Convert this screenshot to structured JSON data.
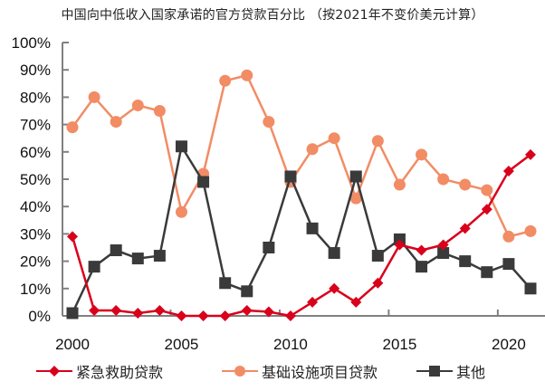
{
  "title": "中国向中低收入国家承诺的官方贷款百分比 （按2021年不变价美元计算）",
  "chart_data": {
    "type": "line",
    "title": "中国向中低收入国家承诺的官方贷款百分比 （按2021年不变价美元计算）",
    "xlabel": "",
    "ylabel": "",
    "x": [
      2000,
      2001,
      2002,
      2003,
      2004,
      2005,
      2006,
      2007,
      2008,
      2009,
      2010,
      2011,
      2012,
      2013,
      2014,
      2015,
      2016,
      2017,
      2018,
      2019,
      2020,
      2021
    ],
    "xticks": [
      "2000",
      "2005",
      "2010",
      "2015",
      "2020"
    ],
    "yticks": [
      "0%",
      "10%",
      "20%",
      "30%",
      "40%",
      "50%",
      "60%",
      "70%",
      "80%",
      "90%",
      "100%"
    ],
    "ylim": [
      0,
      100
    ],
    "grid": false,
    "legend_position": "bottom",
    "series": [
      {
        "name": "紧急救助贷款",
        "color": "#D9001B",
        "marker": "diamond",
        "values": [
          29,
          2,
          2,
          1,
          2,
          0,
          0,
          0,
          2,
          1.5,
          0,
          5,
          10,
          5,
          12,
          26,
          24,
          26,
          32,
          39,
          53,
          59
        ]
      },
      {
        "name": "基础设施项目贷款",
        "color": "#F28C65",
        "marker": "circle",
        "values": [
          69,
          80,
          71,
          77,
          75,
          38,
          52,
          86,
          88,
          71,
          49,
          61,
          65,
          43,
          64,
          48,
          59,
          50,
          48,
          46,
          29,
          31
        ]
      },
      {
        "name": "其他",
        "color": "#3A3A3A",
        "marker": "square",
        "values": [
          1,
          18,
          24,
          21,
          22,
          62,
          49,
          12,
          9,
          25,
          51,
          32,
          23,
          51,
          22,
          28,
          18,
          23,
          20,
          16,
          19,
          10
        ]
      }
    ]
  },
  "legend": {
    "items": [
      {
        "label": "紧急救助贷款",
        "icon": "red-diamond-line-icon"
      },
      {
        "label": "基础设施项目贷款",
        "icon": "orange-circle-line-icon"
      },
      {
        "label": "其他",
        "icon": "dark-square-line-icon"
      }
    ]
  }
}
